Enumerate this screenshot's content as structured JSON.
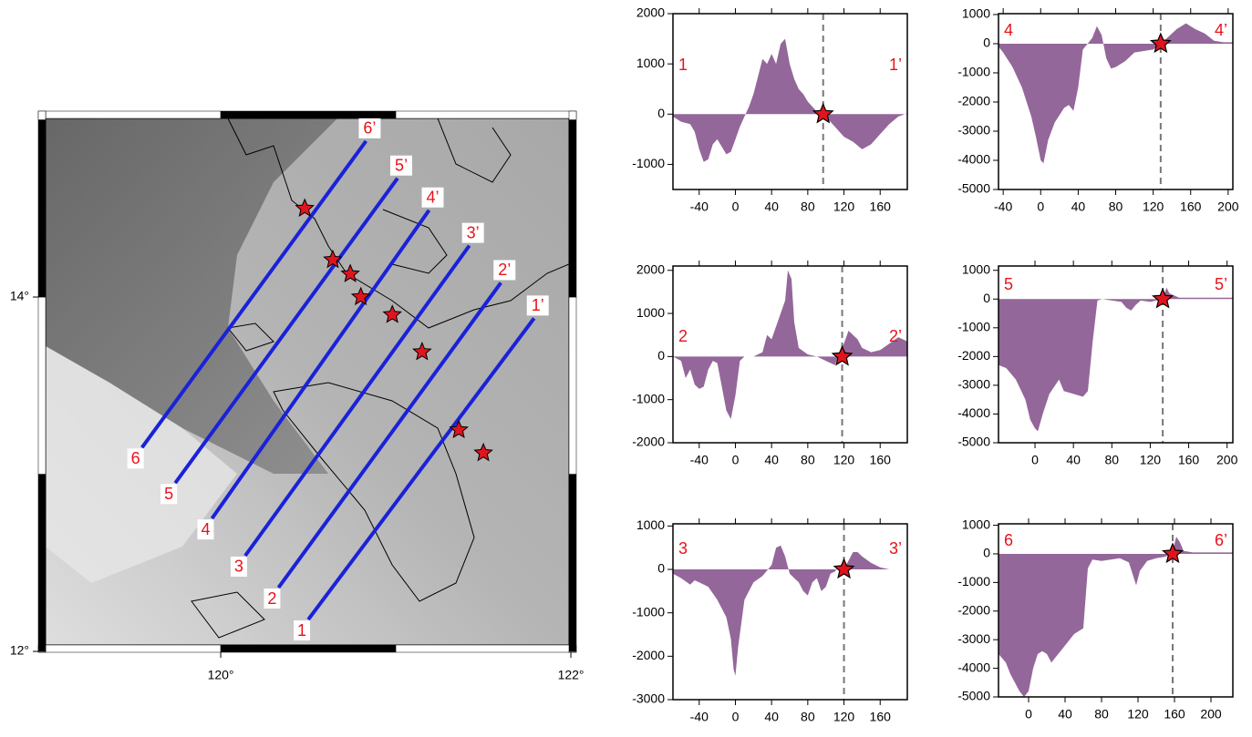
{
  "chart_data": [
    {
      "type": "map",
      "xlim": [
        118.958,
        122.031
      ],
      "ylim": [
        11.995,
        15.049
      ],
      "xticks": [
        {
          "value": 120,
          "label": "120°"
        },
        {
          "value": 122,
          "label": "122°"
        }
      ],
      "yticks": [
        {
          "value": 12,
          "label": "12°"
        },
        {
          "value": 14,
          "label": "14°"
        }
      ],
      "line_color": "#1a22d8",
      "profiles": [
        {
          "start_label": "1",
          "end_label": "1’",
          "lon": [
            120.5,
            121.79
          ],
          "lat": [
            12.18,
            13.88
          ]
        },
        {
          "start_label": "2",
          "end_label": "2’",
          "lon": [
            120.33,
            121.6
          ],
          "lat": [
            12.36,
            14.08
          ]
        },
        {
          "start_label": "3",
          "end_label": "3’",
          "lon": [
            120.14,
            121.42
          ],
          "lat": [
            12.54,
            14.29
          ]
        },
        {
          "start_label": "4",
          "end_label": "4’",
          "lon": [
            119.95,
            121.19
          ],
          "lat": [
            12.75,
            14.49
          ]
        },
        {
          "start_label": "5",
          "end_label": "5’",
          "lon": [
            119.74,
            121.01
          ],
          "lat": [
            12.95,
            14.67
          ]
        },
        {
          "start_label": "6",
          "end_label": "6’",
          "lon": [
            119.55,
            120.83
          ],
          "lat": [
            13.15,
            14.88
          ]
        }
      ],
      "events": {
        "color": "#e0141e",
        "lon": [
          120.48,
          120.64,
          120.74,
          120.8,
          120.98,
          121.15,
          121.36,
          121.5
        ],
        "lat": [
          14.5,
          14.21,
          14.13,
          14.0,
          13.9,
          13.69,
          13.25,
          13.12
        ]
      }
    },
    {
      "type": "area",
      "start_label": "1",
      "end_label": "1’",
      "color": "#94679a",
      "event_color": "#e0141e",
      "xlim": [
        -69,
        190
      ],
      "ylim": [
        -1500,
        2000
      ],
      "xticks": [
        -40,
        0,
        40,
        80,
        120,
        160
      ],
      "yticks": [
        -1000,
        0,
        1000,
        2000
      ],
      "x": [
        -69,
        -60,
        -50,
        -45,
        -40,
        -35,
        -30,
        -25,
        -20,
        -15,
        -10,
        -5,
        0,
        5,
        10,
        15,
        20,
        25,
        30,
        35,
        40,
        45,
        50,
        55,
        60,
        65,
        70,
        75,
        80,
        85,
        90,
        97,
        100,
        110,
        120,
        130,
        140,
        150,
        160,
        170,
        180,
        190
      ],
      "values": [
        -50,
        -150,
        -200,
        -350,
        -700,
        -950,
        -900,
        -600,
        -500,
        -650,
        -800,
        -750,
        -500,
        -250,
        -50,
        150,
        400,
        750,
        1100,
        1000,
        1200,
        1000,
        1400,
        1500,
        1000,
        700,
        500,
        400,
        250,
        150,
        50,
        0,
        -50,
        -250,
        -450,
        -550,
        -700,
        -600,
        -400,
        -200,
        -50,
        20
      ],
      "event_x": 97,
      "event_y": 0
    },
    {
      "type": "area",
      "start_label": "2",
      "end_label": "2’",
      "color": "#94679a",
      "event_color": "#e0141e",
      "xlim": [
        -69,
        190
      ],
      "ylim": [
        -2000,
        2100
      ],
      "xticks": [
        -40,
        0,
        40,
        80,
        120,
        160
      ],
      "yticks": [
        -2000,
        -1000,
        0,
        1000,
        2000
      ],
      "x": [
        -69,
        -60,
        -55,
        -50,
        -45,
        -40,
        -35,
        -30,
        -25,
        -20,
        -15,
        -10,
        -5,
        0,
        5,
        10,
        20,
        30,
        35,
        40,
        45,
        50,
        55,
        58,
        62,
        65,
        70,
        80,
        90,
        100,
        110,
        115,
        120,
        125,
        130,
        135,
        140,
        150,
        160,
        170,
        180,
        190
      ],
      "values": [
        0,
        -100,
        -500,
        -300,
        -650,
        -750,
        -700,
        -300,
        -100,
        -150,
        -700,
        -1250,
        -1450,
        -900,
        -100,
        0,
        0,
        100,
        500,
        400,
        700,
        1000,
        1300,
        2000,
        1800,
        800,
        200,
        50,
        0,
        -100,
        -200,
        100,
        300,
        600,
        500,
        400,
        200,
        100,
        150,
        300,
        450,
        350
      ],
      "event_x": 118,
      "event_y": 0
    },
    {
      "type": "area",
      "start_label": "3",
      "end_label": "3’",
      "color": "#94679a",
      "event_color": "#e0141e",
      "xlim": [
        -69,
        190
      ],
      "ylim": [
        -3000,
        1050
      ],
      "xticks": [
        -40,
        0,
        40,
        80,
        120,
        160
      ],
      "yticks": [
        -3000,
        -2000,
        -1000,
        0,
        1000
      ],
      "x": [
        -69,
        -60,
        -50,
        -45,
        -40,
        -30,
        -20,
        -10,
        -5,
        -2,
        0,
        3,
        10,
        20,
        30,
        40,
        45,
        50,
        55,
        60,
        70,
        75,
        80,
        85,
        90,
        95,
        100,
        105,
        110,
        115,
        120,
        125,
        130,
        135,
        140,
        150,
        160,
        170,
        190
      ],
      "values": [
        -100,
        -200,
        -350,
        -250,
        -300,
        -400,
        -700,
        -1100,
        -1600,
        -2300,
        -2450,
        -1800,
        -700,
        -300,
        -150,
        100,
        500,
        550,
        300,
        -100,
        -300,
        -500,
        -600,
        -300,
        -200,
        -500,
        -400,
        -100,
        -50,
        100,
        0,
        200,
        400,
        400,
        300,
        150,
        50,
        0,
        0
      ],
      "event_x": 120,
      "event_y": 0
    },
    {
      "type": "area",
      "start_label": "4",
      "end_label": "4’",
      "color": "#94679a",
      "event_color": "#e0141e",
      "xlim": [
        -45,
        205
      ],
      "ylim": [
        -5000,
        1030
      ],
      "xticks": [
        -40,
        0,
        40,
        80,
        120,
        160,
        200
      ],
      "yticks": [
        -5000,
        -4000,
        -3000,
        -2000,
        -1000,
        0,
        1000
      ],
      "x": [
        -45,
        -40,
        -30,
        -20,
        -10,
        -5,
        0,
        3,
        8,
        15,
        25,
        30,
        35,
        40,
        45,
        50,
        55,
        60,
        65,
        70,
        75,
        80,
        90,
        100,
        110,
        120,
        128,
        135,
        145,
        155,
        165,
        175,
        185,
        195,
        205
      ],
      "values": [
        -100,
        -300,
        -800,
        -1500,
        -2500,
        -3200,
        -4000,
        -4100,
        -3300,
        -2700,
        -2200,
        -2100,
        -2300,
        -1500,
        -200,
        0,
        200,
        600,
        300,
        -500,
        -850,
        -800,
        -600,
        -300,
        -250,
        -200,
        0,
        200,
        500,
        700,
        500,
        350,
        100,
        50,
        50
      ],
      "event_x": 128,
      "event_y": 0
    },
    {
      "type": "area",
      "start_label": "5",
      "end_label": "5’",
      "color": "#94679a",
      "event_color": "#e0141e",
      "xlim": [
        -38,
        206
      ],
      "ylim": [
        -5000,
        1150
      ],
      "xticks": [
        0,
        40,
        80,
        120,
        160,
        200
      ],
      "yticks": [
        -5000,
        -4000,
        -3000,
        -2000,
        -1000,
        0,
        1000
      ],
      "x": [
        -38,
        -30,
        -20,
        -10,
        -5,
        0,
        3,
        8,
        15,
        25,
        30,
        40,
        50,
        55,
        60,
        65,
        70,
        80,
        90,
        95,
        100,
        105,
        110,
        120,
        133,
        137,
        140,
        150,
        206
      ],
      "values": [
        -2300,
        -2400,
        -2800,
        -3500,
        -4200,
        -4500,
        -4600,
        -4000,
        -3300,
        -2800,
        -3200,
        -3300,
        -3400,
        -3200,
        -1500,
        -50,
        0,
        -50,
        -100,
        -300,
        -400,
        -200,
        -50,
        -100,
        0,
        400,
        200,
        50,
        50
      ],
      "event_x": 133,
      "event_y": 0
    },
    {
      "type": "area",
      "start_label": "6",
      "end_label": "6’",
      "color": "#94679a",
      "event_color": "#e0141e",
      "xlim": [
        -33,
        224
      ],
      "ylim": [
        -5000,
        1050
      ],
      "xticks": [
        0,
        40,
        80,
        120,
        160,
        200
      ],
      "yticks": [
        -5000,
        -4000,
        -3000,
        -2000,
        -1000,
        0,
        1000
      ],
      "x": [
        -33,
        -25,
        -20,
        -10,
        -5,
        0,
        5,
        10,
        15,
        20,
        25,
        30,
        40,
        50,
        60,
        65,
        70,
        80,
        90,
        100,
        110,
        115,
        118,
        122,
        130,
        140,
        150,
        155,
        158,
        162,
        166,
        170,
        180,
        224
      ],
      "values": [
        -3500,
        -3800,
        -4200,
        -4800,
        -5000,
        -4800,
        -4000,
        -3500,
        -3400,
        -3500,
        -3800,
        -3600,
        -3200,
        -2800,
        -2600,
        -500,
        -200,
        -250,
        -200,
        -150,
        -300,
        -800,
        -1100,
        -600,
        -250,
        -150,
        -100,
        0,
        100,
        600,
        400,
        100,
        50,
        50
      ],
      "event_x": 158,
      "event_y": 0
    }
  ]
}
